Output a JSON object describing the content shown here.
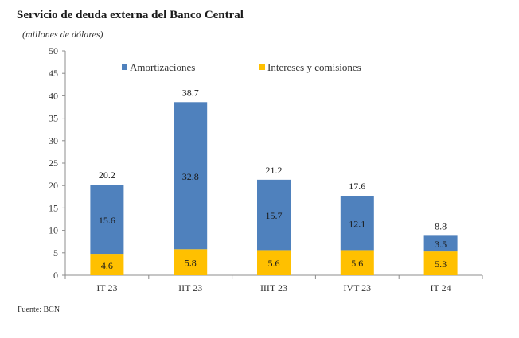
{
  "title": "Servicio de deuda externa del Banco Central",
  "subtitle": "(millones de dólares)",
  "source": "Fuente: BCN",
  "chart_data": {
    "type": "bar",
    "stacked": true,
    "categories": [
      "IT 23",
      "IIT 23",
      "IIIT 23",
      "IVT 23",
      "IT 24"
    ],
    "series": [
      {
        "name": "Intereses y comisiones",
        "values": [
          4.6,
          5.8,
          5.6,
          5.6,
          5.3
        ],
        "color": "#FFC000"
      },
      {
        "name": "Amortizaciones",
        "values": [
          15.6,
          32.8,
          15.7,
          12.1,
          3.5
        ],
        "color": "#4F81BD"
      }
    ],
    "totals": [
      "20.2",
      "38.7",
      "21.2",
      "17.6",
      "8.8"
    ],
    "value_labels": [
      [
        "4.6",
        "5.8",
        "5.6",
        "5.6",
        "5.3"
      ],
      [
        "15.6",
        "32.8",
        "15.7",
        "12.1",
        "3.5"
      ]
    ],
    "legend": [
      "Amortizaciones",
      "Intereses y comisiones"
    ],
    "legend_position": "top",
    "ylim": [
      0,
      50
    ],
    "yticks": [
      0,
      5,
      10,
      15,
      20,
      25,
      30,
      35,
      40,
      45,
      50
    ],
    "ytick_labels": [
      "0",
      "5",
      "10",
      "15",
      "20",
      "25",
      "30",
      "35",
      "40",
      "45",
      "50"
    ],
    "grid": false
  }
}
